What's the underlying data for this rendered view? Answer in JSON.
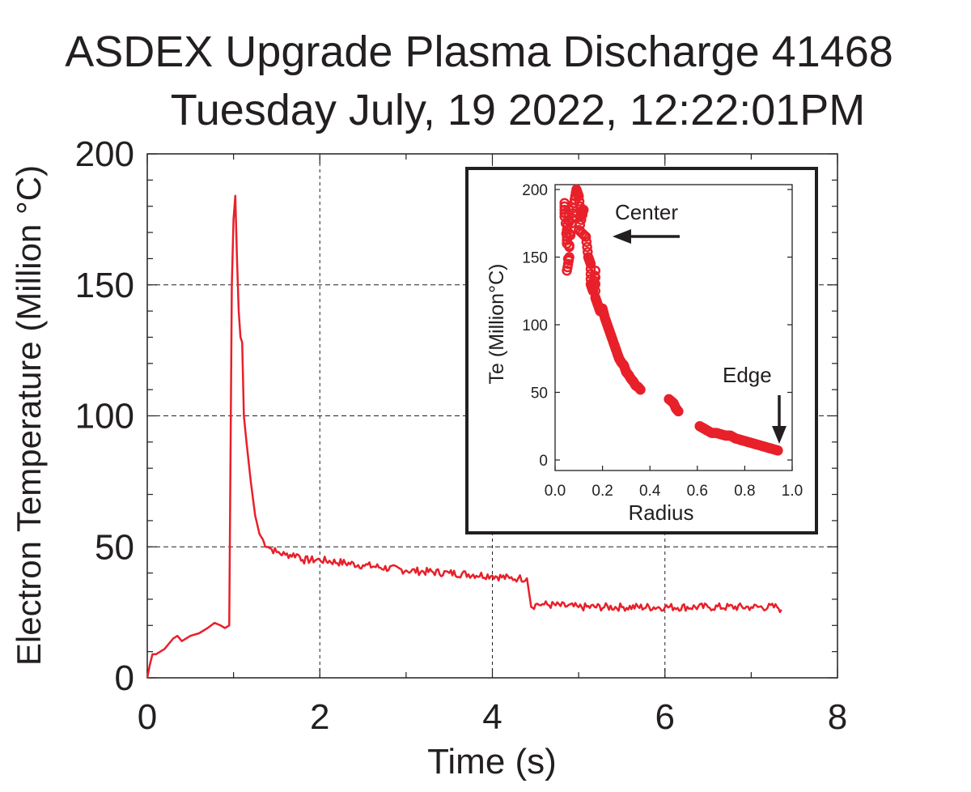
{
  "title": "ASDEX Upgrade Plasma Discharge 41468",
  "subtitle": "Tuesday July, 19 2022, 12:22:01PM",
  "colors": {
    "series": "#e8202a",
    "axis": "#231f20",
    "grid": "#231f20"
  },
  "chart_data": [
    {
      "type": "line",
      "xlabel": "Time (s)",
      "ylabel": "Electron Temperature (Million °C)",
      "xlim": [
        0,
        8
      ],
      "ylim": [
        0,
        200
      ],
      "xticks": [
        "0",
        "2",
        "4",
        "6",
        "8"
      ],
      "yticks": [
        "0",
        "50",
        "100",
        "150",
        "200"
      ],
      "grid": true,
      "series": [
        {
          "x": [
            0.0,
            0.03,
            0.06,
            0.1,
            0.2,
            0.3,
            0.35,
            0.4,
            0.5,
            0.6,
            0.7,
            0.78,
            0.85,
            0.9,
            0.95,
            0.98,
            1.0,
            1.02,
            1.04,
            1.06,
            1.08,
            1.1,
            1.12,
            1.15,
            1.2,
            1.25,
            1.3,
            1.35,
            1.4,
            1.5,
            1.6,
            1.75,
            1.8,
            2.0,
            2.5,
            3.0,
            3.5,
            4.0,
            4.2,
            4.3,
            4.4,
            4.45,
            4.5,
            4.6,
            5.0,
            5.5,
            6.0,
            6.5,
            7.0,
            7.3,
            7.35
          ],
          "y": [
            0,
            5,
            9,
            9,
            11,
            15,
            16,
            14,
            16,
            17,
            19,
            21,
            20,
            19,
            20,
            150,
            175,
            184,
            160,
            140,
            130,
            128,
            100,
            90,
            75,
            62,
            55,
            52,
            50,
            48,
            47,
            47,
            45,
            45,
            43,
            41,
            40,
            39,
            38,
            38,
            38,
            27,
            28,
            28,
            27,
            27,
            27,
            27,
            27,
            27,
            26
          ]
        }
      ]
    },
    {
      "type": "scatter",
      "xlabel": "Radius",
      "ylabel": "Te (Million°C)",
      "xlim": [
        0,
        1.0
      ],
      "ylim": [
        0,
        200
      ],
      "xticks": [
        "0.0",
        "0.2",
        "0.4",
        "0.6",
        "0.8",
        "1.0"
      ],
      "yticks": [
        "0",
        "50",
        "100",
        "150",
        "200"
      ],
      "grid": false,
      "annotations": [
        "Center",
        "Edge"
      ],
      "series": [
        {
          "x": [
            0.04,
            0.04,
            0.05,
            0.05,
            0.06,
            0.06,
            0.05,
            0.07,
            0.08,
            0.09,
            0.1,
            0.11,
            0.12,
            0.1,
            0.13,
            0.14,
            0.15,
            0.15,
            0.16,
            0.17,
            0.17,
            0.18,
            0.19,
            0.2,
            0.21,
            0.22,
            0.23,
            0.24,
            0.25,
            0.26,
            0.27,
            0.28,
            0.29,
            0.3,
            0.31,
            0.32,
            0.33,
            0.34,
            0.35,
            0.36,
            0.48,
            0.5,
            0.51,
            0.52,
            0.61,
            0.62,
            0.63,
            0.64,
            0.66,
            0.68,
            0.7,
            0.72,
            0.74,
            0.76,
            0.78,
            0.8,
            0.82,
            0.84,
            0.86,
            0.88,
            0.9,
            0.92,
            0.94
          ],
          "y": [
            180,
            190,
            160,
            170,
            185,
            150,
            140,
            175,
            190,
            200,
            195,
            180,
            185,
            170,
            165,
            150,
            145,
            130,
            125,
            140,
            120,
            115,
            110,
            112,
            105,
            100,
            95,
            90,
            85,
            80,
            75,
            72,
            70,
            65,
            63,
            60,
            58,
            55,
            54,
            52,
            45,
            42,
            38,
            36,
            25,
            24,
            23,
            22,
            20,
            20,
            19,
            18,
            18,
            16,
            15,
            14,
            13,
            12,
            11,
            10,
            9,
            8,
            7
          ]
        }
      ]
    }
  ]
}
